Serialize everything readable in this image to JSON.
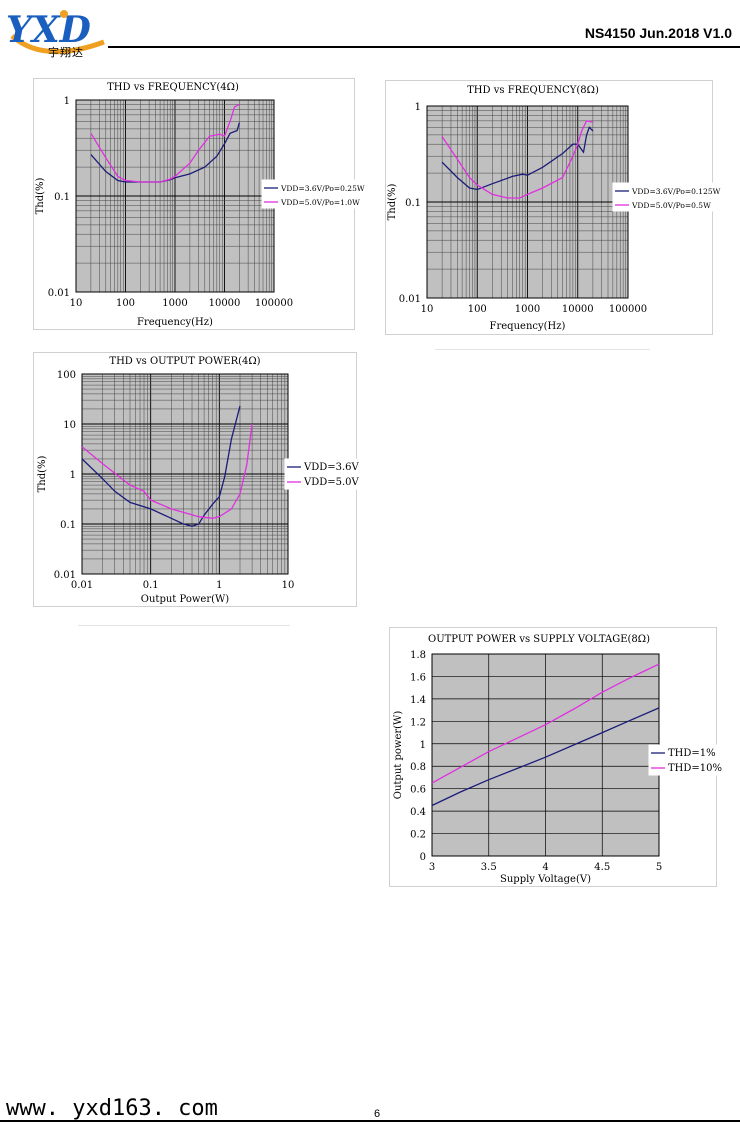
{
  "header": {
    "logo_text": "YXD",
    "logo_cn": "宇翔达",
    "doc_id": "NS4150 Jun.2018 V1.0"
  },
  "footer": {
    "url": "www. yxd163. com",
    "page": "6"
  },
  "chart_data": [
    {
      "id": "c1",
      "type": "line",
      "title": "THD vs FREQUENCY(4Ω)",
      "xlabel": "Frequency(Hz)",
      "ylabel": "Thd(%)",
      "xscale": "log",
      "yscale": "log",
      "xlim": [
        10,
        100000
      ],
      "ylim": [
        0.01,
        1
      ],
      "xticks": [
        "10",
        "100",
        "1000",
        "10000",
        "100000"
      ],
      "yticks": [
        "0.01",
        "0.1",
        "1"
      ],
      "legend_position": "right",
      "grid": true,
      "series": [
        {
          "name": "VDD=3.6V/Po=0.25W",
          "color": "#1c1c78",
          "x": [
            20,
            40,
            70,
            100,
            200,
            500,
            800,
            1000,
            2000,
            4000,
            7000,
            10000,
            13000,
            16000,
            18000,
            20000
          ],
          "y": [
            0.27,
            0.18,
            0.145,
            0.14,
            0.14,
            0.14,
            0.148,
            0.155,
            0.17,
            0.2,
            0.26,
            0.35,
            0.45,
            0.47,
            0.48,
            0.58
          ]
        },
        {
          "name": "VDD=5.0V/Po=1.0W",
          "color": "#e030e0",
          "x": [
            20,
            40,
            70,
            100,
            200,
            500,
            800,
            1000,
            2000,
            3000,
            5000,
            8000,
            10000,
            13000,
            16000,
            20000
          ],
          "y": [
            0.45,
            0.25,
            0.16,
            0.145,
            0.14,
            0.14,
            0.15,
            0.16,
            0.22,
            0.3,
            0.42,
            0.44,
            0.42,
            0.6,
            0.85,
            0.9
          ]
        }
      ]
    },
    {
      "id": "c2",
      "type": "line",
      "title": "THD vs FREQUENCY(8Ω)",
      "xlabel": "Frequency(Hz)",
      "ylabel": "Thd(%)",
      "xscale": "log",
      "yscale": "log",
      "xlim": [
        10,
        100000
      ],
      "ylim": [
        0.01,
        1
      ],
      "xticks": [
        "10",
        "100",
        "1000",
        "10000",
        "100000"
      ],
      "yticks": [
        "0.01",
        "0.1",
        "1"
      ],
      "legend_position": "right",
      "grid": true,
      "series": [
        {
          "name": "VDD=3.6V/Po=0.125W",
          "color": "#1c1c78",
          "x": [
            20,
            40,
            70,
            100,
            200,
            500,
            800,
            1000,
            2000,
            5000,
            8000,
            10000,
            12000,
            13000,
            15000,
            17000,
            20000
          ],
          "y": [
            0.26,
            0.18,
            0.14,
            0.135,
            0.155,
            0.185,
            0.195,
            0.19,
            0.23,
            0.32,
            0.4,
            0.4,
            0.35,
            0.33,
            0.5,
            0.6,
            0.55
          ]
        },
        {
          "name": "VDD=5.0V/Po=0.5W",
          "color": "#e030e0",
          "x": [
            20,
            40,
            70,
            100,
            200,
            400,
            700,
            1000,
            2000,
            5000,
            8000,
            10000,
            12000,
            15000,
            20000
          ],
          "y": [
            0.48,
            0.28,
            0.18,
            0.15,
            0.12,
            0.11,
            0.11,
            0.12,
            0.14,
            0.18,
            0.3,
            0.4,
            0.55,
            0.7,
            0.68
          ]
        }
      ]
    },
    {
      "id": "c3",
      "type": "line",
      "title": "THD vs OUTPUT POWER(4Ω)",
      "xlabel": "Output Power(W)",
      "ylabel": "Thd(%)",
      "xscale": "log",
      "yscale": "log",
      "xlim": [
        0.01,
        10
      ],
      "ylim": [
        0.01,
        100
      ],
      "xticks": [
        "0.01",
        "0.1",
        "1",
        "10"
      ],
      "yticks": [
        "0.01",
        "0.1",
        "1",
        "10",
        "100"
      ],
      "legend_position": "right",
      "grid": true,
      "series": [
        {
          "name": "VDD=3.6V",
          "color": "#1c1c78",
          "x": [
            0.01,
            0.02,
            0.03,
            0.05,
            0.1,
            0.2,
            0.3,
            0.4,
            0.5,
            0.6,
            0.8,
            1.0,
            1.2,
            1.5,
            2.0
          ],
          "y": [
            2.0,
            0.8,
            0.45,
            0.27,
            0.2,
            0.13,
            0.1,
            0.09,
            0.1,
            0.15,
            0.25,
            0.35,
            0.9,
            5,
            23
          ]
        },
        {
          "name": "VDD=5.0V",
          "color": "#e030e0",
          "x": [
            0.01,
            0.02,
            0.05,
            0.08,
            0.1,
            0.2,
            0.5,
            0.8,
            1.0,
            1.5,
            2.0,
            2.5,
            3.0
          ],
          "y": [
            3.5,
            1.6,
            0.6,
            0.45,
            0.3,
            0.2,
            0.14,
            0.13,
            0.14,
            0.2,
            0.4,
            1.5,
            10
          ]
        }
      ]
    },
    {
      "id": "c4",
      "type": "line",
      "title": "OUTPUT POWER vs SUPPLY VOLTAGE(8Ω)",
      "xlabel": "Supply Voltage(V)",
      "ylabel": "Output power(W)",
      "xscale": "linear",
      "yscale": "linear",
      "xlim": [
        3,
        5
      ],
      "ylim": [
        0,
        1.8
      ],
      "xticks": [
        "3",
        "3.5",
        "4",
        "4.5",
        "5"
      ],
      "yticks": [
        "0",
        "0.2",
        "0.4",
        "0.6",
        "0.8",
        "1",
        "1.2",
        "1.4",
        "1.6",
        "1.8"
      ],
      "legend_position": "right",
      "grid": true,
      "series": [
        {
          "name": "THD=1%",
          "color": "#1c1c78",
          "x": [
            3.0,
            3.25,
            3.5,
            3.75,
            4.0,
            4.25,
            4.5,
            4.75,
            5.0
          ],
          "y": [
            0.45,
            0.57,
            0.68,
            0.78,
            0.88,
            0.99,
            1.1,
            1.21,
            1.32
          ]
        },
        {
          "name": "THD=10%",
          "color": "#e030e0",
          "x": [
            3.0,
            3.25,
            3.5,
            3.75,
            4.0,
            4.25,
            4.5,
            4.75,
            5.0
          ],
          "y": [
            0.65,
            0.79,
            0.93,
            1.05,
            1.17,
            1.31,
            1.46,
            1.59,
            1.71
          ]
        }
      ]
    }
  ]
}
